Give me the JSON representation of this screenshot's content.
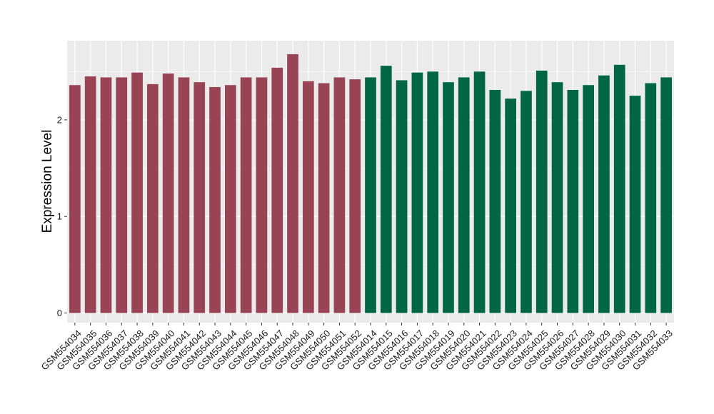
{
  "chart_data": {
    "type": "bar",
    "ylabel": "Expression Level",
    "xlabel": "",
    "ylim": [
      -0.1,
      2.82
    ],
    "yticks": [
      0,
      1,
      2
    ],
    "grid": true,
    "background": "#EBEBEB",
    "gridline_color": "#FFFFFF",
    "categories": [
      "GSM554034",
      "GSM554035",
      "GSM554036",
      "GSM554037",
      "GSM554038",
      "GSM554039",
      "GSM554040",
      "GSM554041",
      "GSM554042",
      "GSM554043",
      "GSM554044",
      "GSM554045",
      "GSM554046",
      "GSM554047",
      "GSM554048",
      "GSM554049",
      "GSM554050",
      "GSM554051",
      "GSM554052",
      "GSM554014",
      "GSM554015",
      "GSM554016",
      "GSM554017",
      "GSM554018",
      "GSM554019",
      "GSM554020",
      "GSM554021",
      "GSM554022",
      "GSM554023",
      "GSM554024",
      "GSM554025",
      "GSM554026",
      "GSM554027",
      "GSM554028",
      "GSM554029",
      "GSM554030",
      "GSM554031",
      "GSM554032",
      "GSM554033"
    ],
    "values": [
      2.36,
      2.45,
      2.44,
      2.44,
      2.49,
      2.37,
      2.48,
      2.44,
      2.39,
      2.34,
      2.36,
      2.44,
      2.44,
      2.54,
      2.68,
      2.4,
      2.38,
      2.44,
      2.42,
      2.44,
      2.56,
      2.41,
      2.49,
      2.5,
      2.39,
      2.44,
      2.5,
      2.31,
      2.22,
      2.3,
      2.51,
      2.39,
      2.31,
      2.36,
      2.46,
      2.57,
      2.25,
      2.38,
      2.44
    ],
    "groups": [
      {
        "color": "#994455",
        "count": 19
      },
      {
        "color": "#006644",
        "count": 20
      }
    ]
  }
}
